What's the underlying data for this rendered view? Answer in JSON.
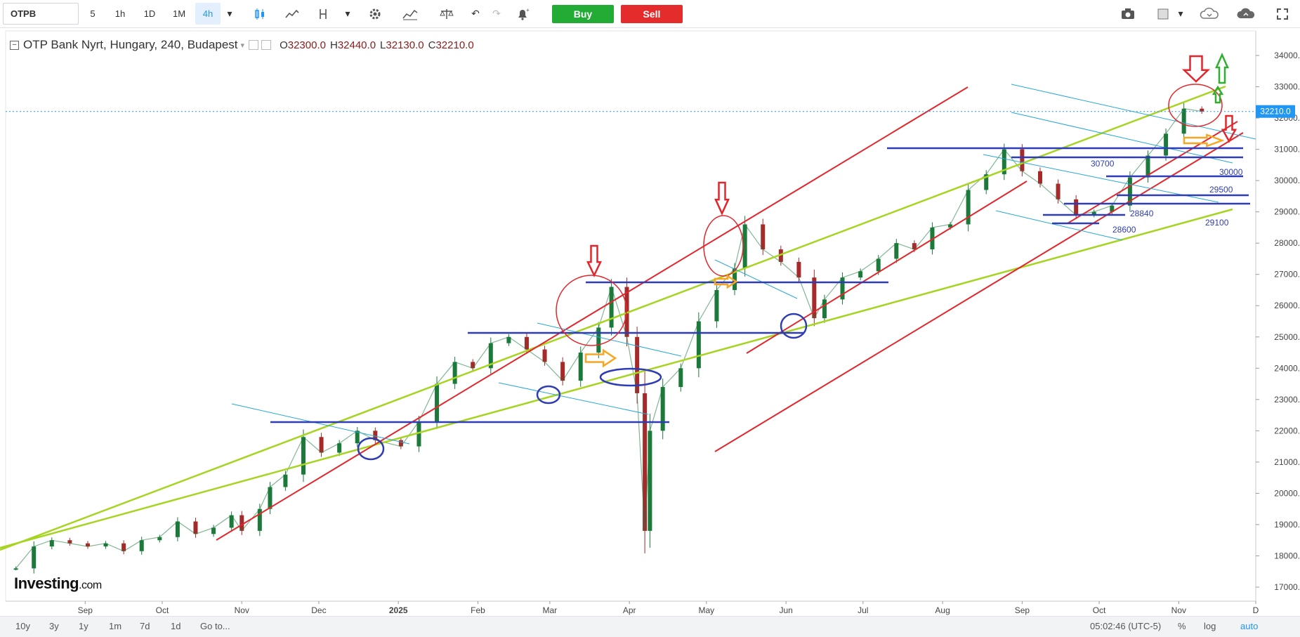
{
  "toolbar": {
    "symbol": "OTPB",
    "timeframes": [
      {
        "label": "5",
        "active": false
      },
      {
        "label": "1h",
        "active": false
      },
      {
        "label": "1D",
        "active": false
      },
      {
        "label": "1M",
        "active": false
      },
      {
        "label": "4h",
        "active": true
      }
    ],
    "buy_label": "Buy",
    "sell_label": "Sell"
  },
  "legend": {
    "title": "OTP Bank Nyrt, Hungary, 240, Budapest",
    "open_label": "O",
    "open": "32300.0",
    "high_label": "H",
    "high": "32440.0",
    "low_label": "L",
    "low": "32130.0",
    "close_label": "C",
    "close": "32210.0"
  },
  "logo": {
    "main": "Investing",
    "suffix": ".com"
  },
  "bottombar": {
    "ranges": [
      "10y",
      "3y",
      "1y",
      "1m",
      "7d",
      "1d"
    ],
    "goto": "Go to...",
    "clock": "05:02:46 (UTC-5)",
    "percent": "%",
    "log": "log",
    "auto": "auto"
  },
  "chart_data": {
    "type": "line",
    "title": "OTP Bank Nyrt, Hungary, 240, Budapest",
    "xlabel": "",
    "ylabel": "",
    "ylim": [
      16700,
      34500
    ],
    "y_ticks": [
      17000,
      18000,
      19000,
      20000,
      21000,
      22000,
      23000,
      24000,
      25000,
      26000,
      27000,
      28000,
      29000,
      30000,
      31000,
      32000,
      33000,
      34000
    ],
    "x_tick_labels": [
      {
        "label": "Sep",
        "date": "2024-09-01"
      },
      {
        "label": "Oct",
        "date": "2024-10-01"
      },
      {
        "label": "Nov",
        "date": "2024-11-01"
      },
      {
        "label": "Dec",
        "date": "2024-12-01"
      },
      {
        "label": "2025",
        "date": "2025-01-01"
      },
      {
        "label": "Feb",
        "date": "2025-02-01"
      },
      {
        "label": "Mar",
        "date": "2025-03-01"
      },
      {
        "label": "Apr",
        "date": "2025-04-01"
      },
      {
        "label": "May",
        "date": "2025-05-01"
      },
      {
        "label": "Jun",
        "date": "2025-06-01"
      },
      {
        "label": "Jul",
        "date": "2025-07-01"
      },
      {
        "label": "Aug",
        "date": "2025-08-01"
      },
      {
        "label": "Sep",
        "date": "2025-09-01"
      },
      {
        "label": "Oct",
        "date": "2025-10-01"
      },
      {
        "label": "Nov",
        "date": "2025-11-01"
      },
      {
        "label": "D",
        "date": "2025-12-01"
      }
    ],
    "last_price": 32210.0,
    "last_price_label": "32210.0",
    "series": [
      {
        "color": "#1b7a3a",
        "points": [
          [
            "2024-08-05",
            17600
          ],
          [
            "2024-08-12",
            18300
          ],
          [
            "2024-08-19",
            18500
          ],
          [
            "2024-08-26",
            18400
          ],
          [
            "2024-09-02",
            18300
          ],
          [
            "2024-09-09",
            18400
          ],
          [
            "2024-09-16",
            18150
          ],
          [
            "2024-09-23",
            18500
          ],
          [
            "2024-09-30",
            18600
          ],
          [
            "2024-10-07",
            19100
          ],
          [
            "2024-10-14",
            18700
          ],
          [
            "2024-10-21",
            18900
          ],
          [
            "2024-10-28",
            19300
          ],
          [
            "2024-11-01",
            18800
          ],
          [
            "2024-11-08",
            19500
          ],
          [
            "2024-11-12",
            20200
          ],
          [
            "2024-11-18",
            20600
          ],
          [
            "2024-11-25",
            21800
          ],
          [
            "2024-12-02",
            21300
          ],
          [
            "2024-12-09",
            21600
          ],
          [
            "2024-12-16",
            22000
          ],
          [
            "2024-12-23",
            21700
          ],
          [
            "2025-01-02",
            21500
          ],
          [
            "2025-01-09",
            22300
          ],
          [
            "2025-01-16",
            23500
          ],
          [
            "2025-01-23",
            24200
          ],
          [
            "2025-01-30",
            24000
          ],
          [
            "2025-02-06",
            24800
          ],
          [
            "2025-02-13",
            25000
          ],
          [
            "2025-02-20",
            24600
          ],
          [
            "2025-02-27",
            24200
          ],
          [
            "2025-03-06",
            23600
          ],
          [
            "2025-03-13",
            24500
          ],
          [
            "2025-03-20",
            25300
          ],
          [
            "2025-03-25",
            26600
          ],
          [
            "2025-03-31",
            25000
          ],
          [
            "2025-04-04",
            23200
          ],
          [
            "2025-04-07",
            18800
          ],
          [
            "2025-04-09",
            22000
          ],
          [
            "2025-04-14",
            23400
          ],
          [
            "2025-04-21",
            24000
          ],
          [
            "2025-04-28",
            25500
          ],
          [
            "2025-05-05",
            26500
          ],
          [
            "2025-05-12",
            27200
          ],
          [
            "2025-05-16",
            28600
          ],
          [
            "2025-05-23",
            27800
          ],
          [
            "2025-05-30",
            27400
          ],
          [
            "2025-06-06",
            26900
          ],
          [
            "2025-06-12",
            25600
          ],
          [
            "2025-06-16",
            26200
          ],
          [
            "2025-06-23",
            26900
          ],
          [
            "2025-06-30",
            27100
          ],
          [
            "2025-07-07",
            27500
          ],
          [
            "2025-07-14",
            28000
          ],
          [
            "2025-07-21",
            27800
          ],
          [
            "2025-07-28",
            28500
          ],
          [
            "2025-08-04",
            28600
          ],
          [
            "2025-08-11",
            29700
          ],
          [
            "2025-08-18",
            30200
          ],
          [
            "2025-08-25",
            31000
          ],
          [
            "2025-09-01",
            30300
          ],
          [
            "2025-09-08",
            29900
          ],
          [
            "2025-09-15",
            29400
          ],
          [
            "2025-09-22",
            28900
          ],
          [
            "2025-09-29",
            29000
          ],
          [
            "2025-10-06",
            29200
          ],
          [
            "2025-10-13",
            30100
          ],
          [
            "2025-10-20",
            30800
          ],
          [
            "2025-10-27",
            31500
          ],
          [
            "2025-11-03",
            32300
          ],
          [
            "2025-11-10",
            32210
          ]
        ]
      }
    ],
    "annotations": [
      {
        "text": "30700",
        "value": 30700
      },
      {
        "text": "30000",
        "value": 30000
      },
      {
        "text": "29500",
        "value": 29500
      },
      {
        "text": "29100",
        "value": 29100
      },
      {
        "text": "28840",
        "value": 28840
      },
      {
        "text": "28600",
        "value": 28600
      }
    ]
  }
}
